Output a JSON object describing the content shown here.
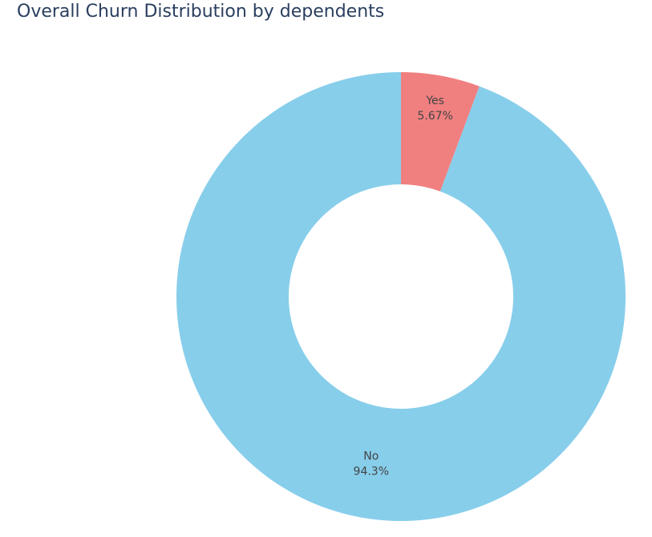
{
  "chart_data": {
    "type": "pie",
    "title": "Overall Churn Distribution by dependents",
    "hole": 0.5,
    "slices": [
      {
        "label": "No",
        "value": 94.3,
        "percent_text": "94.3%",
        "color": "#87ceeb"
      },
      {
        "label": "Yes",
        "value": 5.67,
        "percent_text": "5.67%",
        "color": "#f08080"
      }
    ],
    "start": "top",
    "direction": "counterclockwise"
  }
}
